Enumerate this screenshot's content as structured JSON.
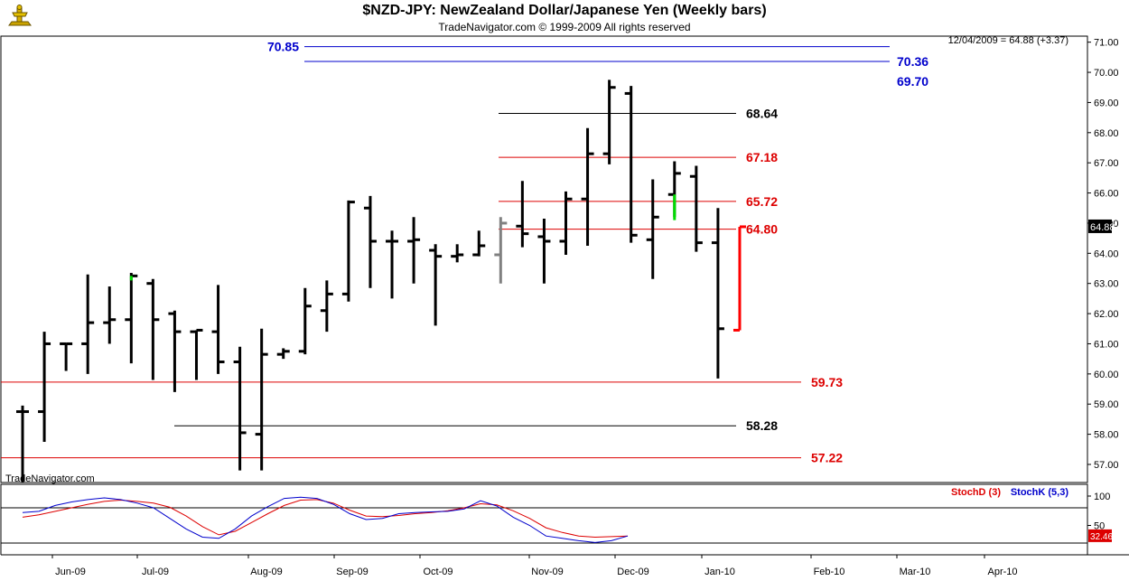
{
  "header": {
    "title": "$NZD-JPY:  NewZealand Dollar/Japanese Yen  (Weekly bars)",
    "subtitle": "TradeNavigator.com © 1999-2009 All rights reserved",
    "quote": "12/04/2009 = 64.88 (+3.37)",
    "last_price_tag": "64.88",
    "watermark": "TradeNavigator.com"
  },
  "colors": {
    "bar": "#000000",
    "up_highlight": "#00dd00",
    "gray_bar": "#808080",
    "current_bar": "#ff0000",
    "red_level": "#dd0000",
    "black_level": "#000000",
    "blue_level": "#0000cc",
    "stochD": "#dd0000",
    "stochK": "#0000cc"
  },
  "chart_data": [
    {
      "type": "ohlc",
      "ylim": [
        56.4,
        71.2
      ],
      "y_ticks": [
        "57.00",
        "58.00",
        "59.00",
        "60.00",
        "61.00",
        "62.00",
        "63.00",
        "64.00",
        "65.00",
        "66.00",
        "67.00",
        "68.00",
        "69.00",
        "70.00",
        "71.00"
      ],
      "x_tick_labels": [
        "Jun-09",
        "Jul-09",
        "Aug-09",
        "Sep-09",
        "Oct-09",
        "Nov-09",
        "Dec-09",
        "Jan-10",
        "Feb-10",
        "Mar-10",
        "Apr-10"
      ],
      "bars": [
        {
          "h": 58.95,
          "l": 56.4,
          "o": 58.75,
          "c": 58.75
        },
        {
          "h": 61.4,
          "l": 57.75,
          "o": 58.75,
          "c": 61.0
        },
        {
          "h": 61.0,
          "l": 60.1,
          "o": 61.0,
          "c": 61.0
        },
        {
          "h": 63.3,
          "l": 60.0,
          "o": 61.0,
          "c": 61.7
        },
        {
          "h": 62.9,
          "l": 61.0,
          "o": 61.7,
          "c": 61.8
        },
        {
          "h": 63.35,
          "l": 60.35,
          "o": 61.8,
          "c": 63.25
        },
        {
          "h": 63.15,
          "l": 59.8,
          "o": 63.0,
          "c": 61.8
        },
        {
          "h": 62.1,
          "l": 59.4,
          "o": 62.0,
          "c": 61.4
        },
        {
          "h": 61.45,
          "l": 59.8,
          "o": 61.4,
          "c": 61.45
        },
        {
          "h": 62.95,
          "l": 60.0,
          "o": 61.4,
          "c": 60.4
        },
        {
          "h": 60.9,
          "l": 56.8,
          "o": 60.4,
          "c": 58.05
        },
        {
          "h": 61.5,
          "l": 56.8,
          "o": 58.0,
          "c": 60.65
        },
        {
          "h": 60.85,
          "l": 60.5,
          "o": 60.65,
          "c": 60.75
        },
        {
          "h": 62.85,
          "l": 60.65,
          "o": 60.75,
          "c": 62.25
        },
        {
          "h": 63.1,
          "l": 61.4,
          "o": 62.1,
          "c": 62.65
        },
        {
          "h": 65.75,
          "l": 62.4,
          "o": 62.65,
          "c": 65.7
        },
        {
          "h": 65.9,
          "l": 62.85,
          "o": 65.5,
          "c": 64.4
        },
        {
          "h": 64.75,
          "l": 62.5,
          "o": 64.4,
          "c": 64.4
        },
        {
          "h": 65.2,
          "l": 63.0,
          "o": 64.4,
          "c": 64.45
        },
        {
          "h": 64.3,
          "l": 61.6,
          "o": 64.1,
          "c": 63.9
        },
        {
          "h": 64.3,
          "l": 63.7,
          "o": 63.9,
          "c": 63.95
        },
        {
          "h": 64.75,
          "l": 63.9,
          "o": 63.95,
          "c": 64.25
        },
        {
          "h": 65.2,
          "l": 63.0,
          "o": 63.95,
          "c": 65.0
        },
        {
          "h": 66.4,
          "l": 64.2,
          "o": 64.9,
          "c": 64.65
        },
        {
          "h": 65.15,
          "l": 63.0,
          "o": 64.55,
          "c": 64.4
        },
        {
          "h": 66.05,
          "l": 63.95,
          "o": 64.4,
          "c": 65.8
        },
        {
          "h": 68.15,
          "l": 64.25,
          "o": 65.8,
          "c": 67.3
        },
        {
          "h": 69.75,
          "l": 66.95,
          "o": 67.3,
          "c": 69.5
        },
        {
          "h": 69.55,
          "l": 64.35,
          "o": 69.3,
          "c": 64.6
        },
        {
          "h": 66.45,
          "l": 63.15,
          "o": 64.45,
          "c": 65.2
        },
        {
          "h": 67.05,
          "l": 65.2,
          "o": 65.95,
          "c": 66.65
        },
        {
          "h": 66.9,
          "l": 64.05,
          "o": 66.55,
          "c": 64.35
        },
        {
          "h": 65.5,
          "l": 59.85,
          "o": 64.35,
          "c": 61.5
        },
        {
          "h": 64.88,
          "l": 61.45,
          "o": 61.45,
          "c": 64.88
        }
      ],
      "levels": [
        {
          "value": 70.85,
          "label": "70.85",
          "color": "blue",
          "label_side": "left"
        },
        {
          "value": 70.36,
          "label": "70.36",
          "color": "blue",
          "label_side": "right"
        },
        {
          "value": 69.7,
          "label": "69.70",
          "color": "blue",
          "label_side": "right",
          "line": false
        },
        {
          "value": 68.64,
          "label": "68.64",
          "color": "black",
          "label_side": "right"
        },
        {
          "value": 67.18,
          "label": "67.18",
          "color": "red",
          "label_side": "right"
        },
        {
          "value": 65.72,
          "label": "65.72",
          "color": "red",
          "label_side": "right"
        },
        {
          "value": 64.8,
          "label": "64.80",
          "color": "red",
          "label_side": "right"
        },
        {
          "value": 59.73,
          "label": "59.73",
          "color": "red",
          "label_side": "right"
        },
        {
          "value": 58.28,
          "label": "58.28",
          "color": "black",
          "label_side": "right"
        },
        {
          "value": 57.22,
          "label": "57.22",
          "color": "red",
          "label_side": "right"
        }
      ]
    },
    {
      "type": "line",
      "ylim": [
        0,
        120
      ],
      "y_ticks": [
        "100",
        "50"
      ],
      "reference_levels": [
        80,
        20
      ],
      "last_value": "32.46",
      "series": [
        {
          "name": "StochD (3)",
          "color": "#dd0000",
          "values": [
            64,
            68,
            74,
            80,
            86,
            91,
            93,
            91,
            88,
            81,
            66,
            48,
            34,
            40,
            55,
            70,
            84,
            93,
            94,
            88,
            76,
            66,
            65,
            67,
            70,
            72,
            75,
            80,
            87,
            85,
            75,
            62,
            46,
            38,
            32,
            30,
            31,
            32
          ]
        },
        {
          "name": "StochK (5,3)",
          "color": "#0000cc",
          "values": [
            72,
            74,
            84,
            90,
            94,
            97,
            94,
            88,
            80,
            62,
            44,
            30,
            28,
            44,
            66,
            82,
            96,
            98,
            96,
            86,
            70,
            60,
            62,
            70,
            72,
            73,
            74,
            78,
            92,
            83,
            64,
            50,
            32,
            28,
            24,
            21,
            24,
            32
          ]
        }
      ]
    }
  ]
}
